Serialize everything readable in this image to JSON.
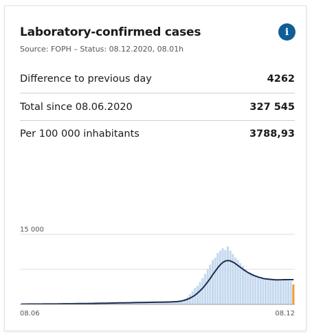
{
  "card": {
    "title": "Laboratory-confirmed cases",
    "source": "Source: FOPH – Status: 08.12.2020, 08.01h",
    "info_glyph": "i"
  },
  "rows": [
    {
      "label": "Difference to previous day",
      "value": "4262"
    },
    {
      "label": "Total since 08.06.2020",
      "value": "327 545"
    },
    {
      "label": "Per 100 000 inhabitants",
      "value": "3788,93"
    }
  ],
  "colors": {
    "bar": "#c5d9ef",
    "line": "#1c2b4c",
    "highlight": "#f39c2f",
    "info": "#0f5f96"
  },
  "chart_data": {
    "type": "bar",
    "ytick_label": "15 000",
    "yticks": [
      15000,
      7500
    ],
    "ylim": [
      0,
      15000
    ],
    "x_start_label": "08.06",
    "x_end_label": "08.12",
    "series": [
      {
        "type": "bar",
        "values": [
          50,
          30,
          60,
          40,
          70,
          60,
          80,
          50,
          70,
          60,
          90,
          80,
          100,
          90,
          110,
          100,
          120,
          110,
          130,
          120,
          140,
          130,
          160,
          150,
          170,
          160,
          180,
          170,
          200,
          190,
          210,
          220,
          230,
          240,
          250,
          240,
          260,
          270,
          280,
          290,
          300,
          310,
          320,
          330,
          340,
          330,
          350,
          360,
          370,
          380,
          390,
          400,
          400,
          420,
          430,
          440,
          450,
          470,
          480,
          500,
          520,
          550,
          600,
          700,
          900,
          1200,
          1600,
          2200,
          2800,
          3500,
          4000,
          4800,
          5600,
          6500,
          7500,
          8500,
          9500,
          10000,
          11000,
          11500,
          12000,
          11600,
          12400,
          11500,
          10800,
          10000,
          9500,
          8800,
          8200,
          7600,
          7000,
          6800,
          6600,
          6300,
          6000,
          5800,
          5600,
          5400,
          5600,
          5500,
          5300,
          5200,
          5100,
          5000,
          5200,
          5300,
          5100,
          5000,
          4262
        ]
      },
      {
        "type": "line",
        "values": [
          80,
          80,
          80,
          85,
          85,
          90,
          90,
          95,
          95,
          100,
          100,
          110,
          110,
          120,
          120,
          130,
          130,
          140,
          140,
          150,
          150,
          160,
          160,
          170,
          170,
          180,
          190,
          200,
          210,
          220,
          230,
          240,
          250,
          260,
          270,
          280,
          290,
          300,
          310,
          320,
          330,
          340,
          350,
          360,
          370,
          380,
          390,
          400,
          410,
          420,
          430,
          440,
          450,
          460,
          470,
          480,
          490,
          500,
          510,
          520,
          540,
          570,
          610,
          680,
          780,
          920,
          1100,
          1350,
          1650,
          2000,
          2450,
          2950,
          3500,
          4150,
          4850,
          5600,
          6400,
          7150,
          7900,
          8500,
          9000,
          9300,
          9400,
          9300,
          9050,
          8700,
          8300,
          7900,
          7500,
          7150,
          6800,
          6500,
          6250,
          6050,
          5850,
          5700,
          5550,
          5450,
          5400,
          5350,
          5300,
          5250,
          5250,
          5250,
          5300,
          5300,
          5300,
          5300,
          5300
        ]
      }
    ],
    "highlight_last": true
  }
}
